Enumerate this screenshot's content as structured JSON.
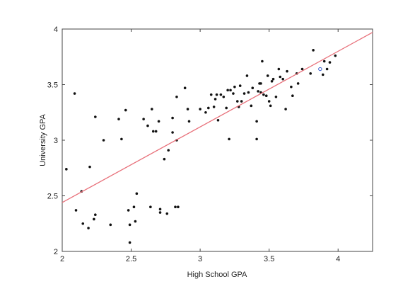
{
  "chart_data": {
    "type": "scatter",
    "title": "",
    "xlabel": "High School GPA",
    "ylabel": "University GPA",
    "xlim": [
      2,
      4.25
    ],
    "ylim": [
      2,
      4
    ],
    "x_ticks": [
      2,
      2.5,
      3,
      3.5,
      4
    ],
    "y_ticks": [
      2,
      2.5,
      3,
      3.5,
      4
    ],
    "x_tick_labels": [
      "2",
      "2.5",
      "3",
      "3.5",
      "4"
    ],
    "y_tick_labels": [
      "2",
      "2.5",
      "3",
      "3.5",
      "4"
    ],
    "grid": false,
    "colors": {
      "points": "#111111",
      "fit_line": "#e8707a",
      "highlight": "#3a5fcd",
      "frame": "#444444"
    },
    "fit_line": {
      "x": [
        2,
        4.25
      ],
      "y": [
        2.44,
        3.97
      ]
    },
    "highlighted_point": {
      "x": 3.87,
      "y": 3.64
    },
    "points": [
      [
        2.03,
        2.74
      ],
      [
        2.09,
        3.42
      ],
      [
        2.1,
        2.37
      ],
      [
        2.14,
        2.54
      ],
      [
        2.15,
        2.25
      ],
      [
        2.19,
        2.21
      ],
      [
        2.2,
        2.76
      ],
      [
        2.23,
        2.29
      ],
      [
        2.24,
        2.33
      ],
      [
        2.24,
        3.21
      ],
      [
        2.3,
        3.0
      ],
      [
        2.35,
        2.24
      ],
      [
        2.41,
        3.19
      ],
      [
        2.43,
        3.01
      ],
      [
        2.46,
        3.27
      ],
      [
        2.48,
        2.37
      ],
      [
        2.49,
        2.24
      ],
      [
        2.49,
        2.08
      ],
      [
        2.52,
        2.4
      ],
      [
        2.53,
        2.27
      ],
      [
        2.54,
        2.52
      ],
      [
        2.59,
        3.19
      ],
      [
        2.62,
        3.13
      ],
      [
        2.64,
        2.4
      ],
      [
        2.65,
        3.28
      ],
      [
        2.66,
        3.08
      ],
      [
        2.68,
        3.08
      ],
      [
        2.7,
        3.17
      ],
      [
        2.71,
        2.38
      ],
      [
        2.71,
        2.35
      ],
      [
        2.74,
        2.83
      ],
      [
        2.76,
        2.34
      ],
      [
        2.77,
        2.91
      ],
      [
        2.8,
        3.07
      ],
      [
        2.8,
        3.2
      ],
      [
        2.82,
        2.4
      ],
      [
        2.83,
        3.0
      ],
      [
        2.83,
        3.39
      ],
      [
        2.84,
        2.4
      ],
      [
        2.89,
        3.47
      ],
      [
        2.91,
        3.28
      ],
      [
        2.92,
        3.17
      ],
      [
        3.0,
        3.28
      ],
      [
        3.04,
        3.25
      ],
      [
        3.06,
        3.29
      ],
      [
        3.08,
        3.41
      ],
      [
        3.1,
        3.3
      ],
      [
        3.11,
        3.37
      ],
      [
        3.12,
        3.41
      ],
      [
        3.13,
        3.18
      ],
      [
        3.15,
        3.41
      ],
      [
        3.17,
        3.39
      ],
      [
        3.19,
        3.29
      ],
      [
        3.2,
        3.45
      ],
      [
        3.21,
        3.01
      ],
      [
        3.22,
        3.45
      ],
      [
        3.24,
        3.42
      ],
      [
        3.25,
        3.48
      ],
      [
        3.27,
        3.35
      ],
      [
        3.28,
        3.3
      ],
      [
        3.29,
        3.49
      ],
      [
        3.3,
        3.35
      ],
      [
        3.32,
        3.42
      ],
      [
        3.34,
        3.58
      ],
      [
        3.35,
        3.43
      ],
      [
        3.37,
        3.31
      ],
      [
        3.38,
        3.47
      ],
      [
        3.41,
        3.01
      ],
      [
        3.41,
        3.17
      ],
      [
        3.42,
        3.44
      ],
      [
        3.43,
        3.51
      ],
      [
        3.44,
        3.43
      ],
      [
        3.44,
        3.51
      ],
      [
        3.45,
        3.71
      ],
      [
        3.46,
        3.41
      ],
      [
        3.48,
        3.4
      ],
      [
        3.49,
        3.58
      ],
      [
        3.5,
        3.35
      ],
      [
        3.51,
        3.31
      ],
      [
        3.52,
        3.53
      ],
      [
        3.53,
        3.55
      ],
      [
        3.55,
        3.39
      ],
      [
        3.57,
        3.64
      ],
      [
        3.58,
        3.57
      ],
      [
        3.6,
        3.55
      ],
      [
        3.62,
        3.28
      ],
      [
        3.63,
        3.62
      ],
      [
        3.66,
        3.48
      ],
      [
        3.67,
        3.4
      ],
      [
        3.7,
        3.6
      ],
      [
        3.71,
        3.51
      ],
      [
        3.74,
        3.64
      ],
      [
        3.8,
        3.6
      ],
      [
        3.82,
        3.81
      ],
      [
        3.89,
        3.59
      ],
      [
        3.9,
        3.71
      ],
      [
        3.92,
        3.64
      ],
      [
        3.94,
        3.7
      ],
      [
        3.98,
        3.76
      ]
    ]
  }
}
